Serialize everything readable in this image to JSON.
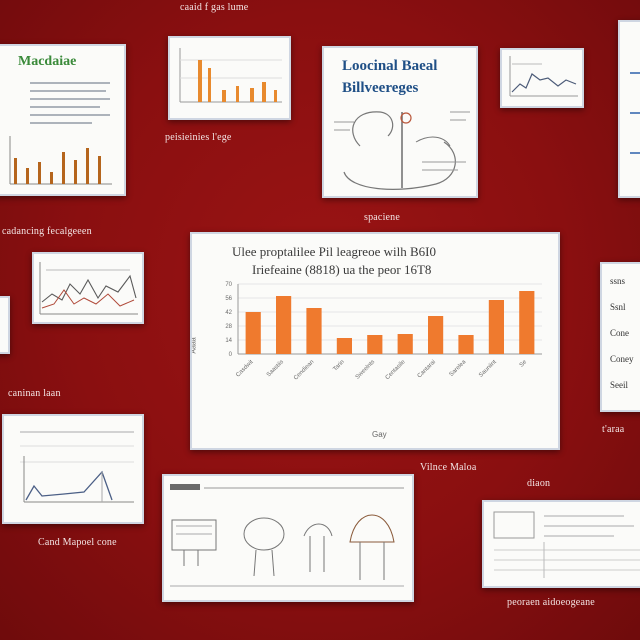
{
  "captions": {
    "top_center": "caaid f gas lume",
    "card2": "peisieinies l'ege",
    "card3": "spaciene",
    "left_row2": "cadancing fecalgeeen",
    "left_row3": "caninan laan",
    "main_bottom_right": "Vilnce Maloa",
    "right_row2": "t'araa",
    "left_row4": "Cand Mapoel cone",
    "right_row4": "diaon",
    "bottom_right": "peoraen aidoeogeane"
  },
  "cards": {
    "top_left_title": "Macdaiae",
    "top_mid_title_1": "Loocinal Baeal",
    "top_mid_title_2": "Billveereges"
  },
  "main_chart": {
    "title_line1": "Ulee proptalilee Pil leagreoe wilh B6I0",
    "title_line2": "Iriefeaine (8818) ua the peor 16T8",
    "xlabel": "Gay",
    "ylabel_rotated": "Aaaa",
    "accent": "#ef7a2e"
  },
  "chart_data": {
    "type": "bar",
    "title": "Ulee proptalilee Pil leagreoe wilh B6I0 Iriefeaine (8818) ua the peor 16T8",
    "xlabel": "Gay",
    "ylabel": "",
    "categories": [
      "Casdwit",
      "Saastiis",
      "Cendiean",
      "Tarin",
      "Sweelnts",
      "Centasile",
      "Cantarai",
      "Sarelea",
      "Sauniint",
      "Se"
    ],
    "values": [
      42,
      58,
      46,
      16,
      19,
      20,
      38,
      19,
      54,
      63
    ],
    "ylim": [
      0,
      70
    ],
    "grid": true
  },
  "right_card_labels": [
    "ssns",
    "Ssnl",
    "Cone",
    "Coney",
    "Seeil"
  ]
}
